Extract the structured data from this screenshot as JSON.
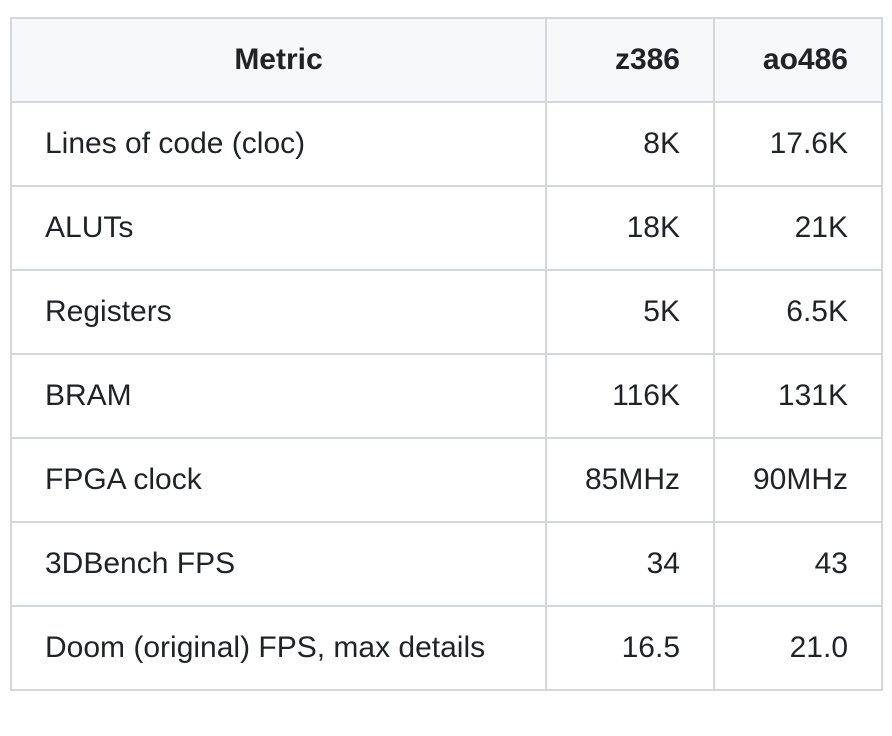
{
  "table": {
    "header": [
      "Metric",
      "z386",
      "ao486"
    ],
    "rows": [
      [
        "Lines of code (cloc)",
        "8K",
        "17.6K"
      ],
      [
        "ALUTs",
        "18K",
        "21K"
      ],
      [
        "Registers",
        "5K",
        "6.5K"
      ],
      [
        "BRAM",
        "116K",
        "131K"
      ],
      [
        "FPGA clock",
        "85MHz",
        "90MHz"
      ],
      [
        "3DBench FPS",
        "34",
        "43"
      ],
      [
        "Doom (original) FPS, max details",
        "16.5",
        "21.0"
      ]
    ]
  }
}
